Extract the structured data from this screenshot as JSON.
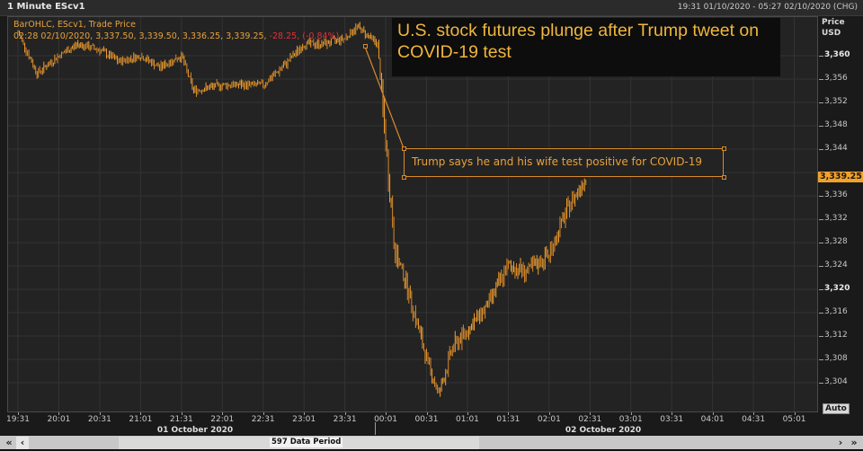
{
  "window": {
    "title": "1 Minute EScv1",
    "date_range": "19:31 01/10/2020 - 05:27 02/10/2020 (CHG)"
  },
  "legend": {
    "line1": "BarOHLC, EScv1, Trade Price",
    "line2_main": "02:28 02/10/2020, 3,337.50, 3,339.50, 3,336.25, 3,339.25, ",
    "line2_change": "-28.25, (-0.84%)"
  },
  "headline": {
    "text": "U.S. stock futures plunge after Trump tweet on COVID-19 test"
  },
  "annotation": {
    "text": "Trump says he and his wife test positive for COVID-19"
  },
  "y_axis": {
    "title_line1": "Price",
    "title_line2": "USD",
    "current_price_tag": "3,339.25",
    "auto_button": "Auto"
  },
  "x_axis": {
    "day1": "01 October 2020",
    "day2": "02 October 2020"
  },
  "scrollbar": {
    "label": "597 Data Period",
    "first_btn": "«",
    "prev_btn": "‹",
    "next_btn": "›",
    "last_btn": "»"
  },
  "colors": {
    "bars": "#f0a030",
    "background": "#232323",
    "accent": "#e8a23c",
    "negative": "#e0323a",
    "price_tag": "#f2a12b"
  },
  "chart_data": {
    "type": "bar",
    "subtype": "OHLC",
    "title": "U.S. stock futures plunge after Trump tweet on COVID-19 test",
    "instrument": "EScv1",
    "interval": "1 Minute",
    "xlabel": "",
    "ylabel": "Price USD",
    "ylim": [
      3301,
      3367
    ],
    "y_ticks": [
      3360,
      3356,
      3352,
      3348,
      3344,
      3340,
      3336,
      3332,
      3328,
      3324,
      3320,
      3316,
      3312,
      3308,
      3304
    ],
    "y_tick_labels": [
      "3,360",
      "3,356",
      "3,352",
      "3,348",
      "3,344",
      "3,340",
      "3,336",
      "3,332",
      "3,328",
      "3,324",
      "3,320",
      "3,316",
      "3,312",
      "3,308",
      "3,304"
    ],
    "x_ticks": [
      "19:31",
      "20:01",
      "20:31",
      "21:01",
      "21:31",
      "22:01",
      "22:31",
      "23:01",
      "23:31",
      "00:01",
      "00:31",
      "01:01",
      "01:31",
      "02:01",
      "02:31",
      "03:01",
      "03:31",
      "04:01",
      "04:31",
      "05:01"
    ],
    "x_day_labels": [
      "01 October 2020",
      "02 October 2020"
    ],
    "grid": true,
    "last_bar": {
      "time": "02:28 02/10/2020",
      "open": 3337.5,
      "high": 3339.5,
      "low": 3336.25,
      "close": 3339.25,
      "change": -28.25,
      "change_pct": -0.84
    },
    "approx_close_path": [
      {
        "t": "19:31",
        "v": 3364
      },
      {
        "t": "19:45",
        "v": 3357
      },
      {
        "t": "20:01",
        "v": 3360
      },
      {
        "t": "20:15",
        "v": 3362
      },
      {
        "t": "20:31",
        "v": 3361
      },
      {
        "t": "20:45",
        "v": 3359
      },
      {
        "t": "21:01",
        "v": 3360
      },
      {
        "t": "21:15",
        "v": 3358
      },
      {
        "t": "21:31",
        "v": 3360
      },
      {
        "t": "21:40",
        "v": 3354
      },
      {
        "t": "22:01",
        "v": 3355
      },
      {
        "t": "22:31",
        "v": 3355
      },
      {
        "t": "22:45",
        "v": 3358
      },
      {
        "t": "23:01",
        "v": 3362
      },
      {
        "t": "23:15",
        "v": 3362
      },
      {
        "t": "23:31",
        "v": 3363
      },
      {
        "t": "23:40",
        "v": 3365
      },
      {
        "t": "23:55",
        "v": 3362
      },
      {
        "t": "00:01",
        "v": 3345
      },
      {
        "t": "00:08",
        "v": 3326
      },
      {
        "t": "00:15",
        "v": 3322
      },
      {
        "t": "00:31",
        "v": 3308
      },
      {
        "t": "00:40",
        "v": 3302
      },
      {
        "t": "00:50",
        "v": 3310
      },
      {
        "t": "01:01",
        "v": 3313
      },
      {
        "t": "01:15",
        "v": 3317
      },
      {
        "t": "01:31",
        "v": 3324
      },
      {
        "t": "01:45",
        "v": 3323
      },
      {
        "t": "02:01",
        "v": 3326
      },
      {
        "t": "02:15",
        "v": 3334
      },
      {
        "t": "02:28",
        "v": 3339.25
      }
    ],
    "annotations": [
      {
        "text": "Trump says he and his wife test positive for COVID-19",
        "anchor_time": "23:55",
        "anchor_value": 3362
      },
      {
        "text": "U.S. stock futures plunge after Trump tweet on COVID-19 test",
        "type": "headline"
      }
    ]
  }
}
